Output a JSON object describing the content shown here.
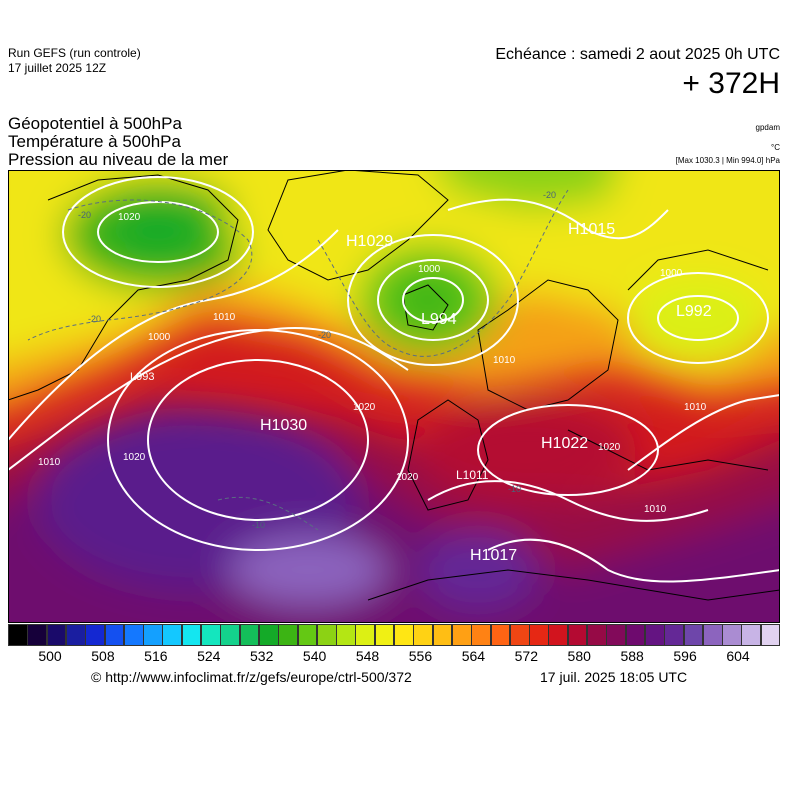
{
  "header": {
    "run_line1": "Run GEFS (run controle)",
    "run_line2": "17 juillet 2025 12Z",
    "valid_line": "Echéance : samedi 2 aout 2025 0h UTC",
    "lead_time": "+ 372H",
    "param1": "Géopotentiel à 500hPa",
    "param2": "Température à 500hPa",
    "param3": "Pression au niveau de la mer",
    "unit_geopotential": "gpdam",
    "unit_temperature": "°C",
    "pressure_range": "[Max 1030.3 | Min 994.0] hPa"
  },
  "map": {
    "pressure_centers": [
      {
        "type": "H",
        "value": "1030",
        "label": "H1030"
      },
      {
        "type": "H",
        "value": "1029",
        "label": "H1029"
      },
      {
        "type": "H",
        "value": "1015",
        "label": "H1015"
      },
      {
        "type": "H",
        "value": "1022",
        "label": "H1022"
      },
      {
        "type": "H",
        "value": "1017",
        "label": "H1017"
      },
      {
        "type": "L",
        "value": "994",
        "label": "L994"
      },
      {
        "type": "L",
        "value": "992",
        "label": "L992"
      },
      {
        "type": "L",
        "value": "993",
        "label": "L993"
      },
      {
        "type": "L",
        "value": "1011",
        "label": "L1011"
      }
    ],
    "isobar_labels": [
      "1000",
      "1010",
      "1020",
      "1020",
      "1010",
      "1000",
      "1010",
      "1020",
      "1010",
      "1000",
      "1010",
      "1020",
      "1020"
    ],
    "temperature_labels": [
      "-20",
      "-20",
      "-20",
      "-20",
      "-10",
      "-10"
    ]
  },
  "color_scale": {
    "colors": [
      "#000000",
      "#16003a",
      "#1a0a6a",
      "#1a1ea0",
      "#1428d2",
      "#1450f0",
      "#1478ff",
      "#14a0ff",
      "#14c8ff",
      "#14e6f0",
      "#14e6be",
      "#14d28c",
      "#14be5a",
      "#14aa28",
      "#3cb414",
      "#64c814",
      "#8cd214",
      "#b4e614",
      "#dcf014",
      "#f0f014",
      "#ffe614",
      "#ffd214",
      "#ffbe14",
      "#ffa014",
      "#ff8214",
      "#ff6414",
      "#f04614",
      "#e62814",
      "#d2141e",
      "#b40a32",
      "#960a46",
      "#820a5a",
      "#6e0a6e",
      "#641482",
      "#642896",
      "#6e46aa",
      "#8c64be",
      "#aa8cd2",
      "#c8b4e6",
      "#e1d2f0"
    ],
    "tick_labels": [
      "500",
      "508",
      "516",
      "524",
      "532",
      "540",
      "548",
      "556",
      "564",
      "572",
      "580",
      "588",
      "596",
      "604"
    ]
  },
  "footer": {
    "source": "© http://www.infoclimat.fr/z/gefs/europe/ctrl-500/372",
    "generated": "17 juil. 2025 18:05 UTC"
  }
}
